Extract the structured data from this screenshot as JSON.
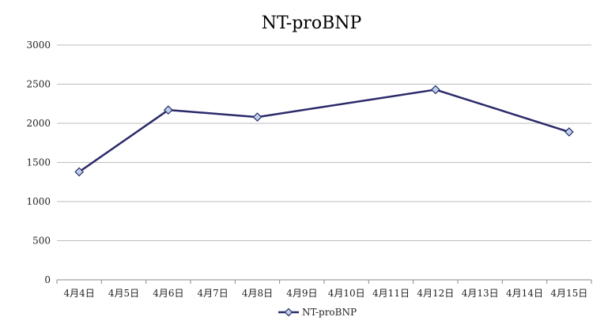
{
  "chart_data": {
    "type": "line",
    "title": "NT-proBNP",
    "xlabel": "",
    "ylabel": "",
    "categories": [
      "4月4日",
      "4月5日",
      "4月6日",
      "4月7日",
      "4月8日",
      "4月9日",
      "4月10日",
      "4月11日",
      "4月12日",
      "4月13日",
      "4月14日",
      "4月15日"
    ],
    "series": [
      {
        "name": "NT-proBNP",
        "points": [
          {
            "category": "4月4日",
            "value": 1380
          },
          {
            "category": "4月6日",
            "value": 2170
          },
          {
            "category": "4月8日",
            "value": 2080
          },
          {
            "category": "4月12日",
            "value": 2430
          },
          {
            "category": "4月15日",
            "value": 1890
          }
        ]
      }
    ],
    "ylim": [
      0,
      3000
    ],
    "yticks": [
      0,
      500,
      1000,
      1500,
      2000,
      2500,
      3000
    ],
    "grid": true,
    "legend": "bottom",
    "colors": {
      "line": "#2b2a6a",
      "marker_fill": "#bcd4ec",
      "marker_stroke": "#2b2a6a"
    }
  }
}
